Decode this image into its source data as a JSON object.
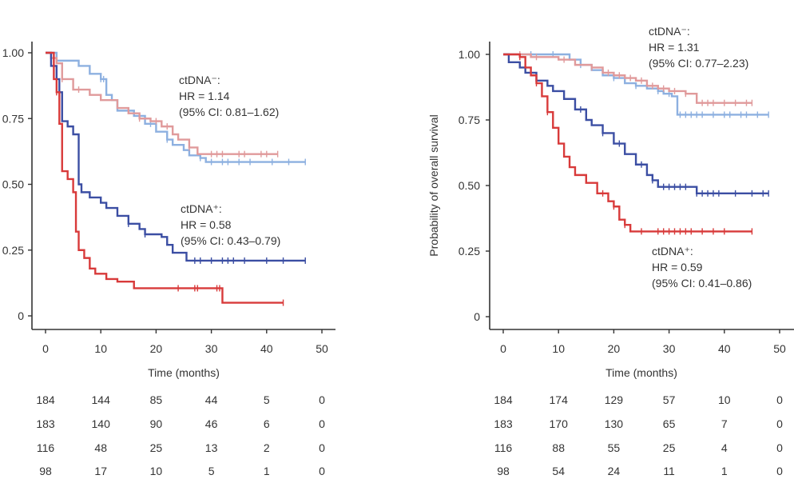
{
  "chart_data": [
    {
      "type": "line",
      "subtype": "kaplan-meier",
      "title": "",
      "xlabel": "Time (months)",
      "ylabel": "",
      "xlim": [
        0,
        50
      ],
      "ylim": [
        0,
        1
      ],
      "xticks": [
        "0",
        "10",
        "20",
        "30",
        "40",
        "50"
      ],
      "yticks": [
        "0",
        "0.25",
        "0.50",
        "0.75",
        "1.00"
      ],
      "grid": false,
      "annotations": [
        {
          "lines": [
            "ctDNA⁻:",
            "HR = 1.14",
            "(95% CI: 0.81–1.62)"
          ],
          "near": "upper-right"
        },
        {
          "lines": [
            "ctDNA⁺:",
            "HR = 0.58",
            "(95% CI: 0.43–0.79)"
          ],
          "near": "middle-right"
        }
      ],
      "series": [
        {
          "name": "ctDNA- light blue",
          "color": "#8db0e0",
          "t": [
            0,
            2,
            6,
            8,
            10,
            11,
            12,
            13,
            16,
            18,
            20,
            22,
            23,
            25,
            26,
            28,
            29,
            47
          ],
          "s": [
            1.0,
            0.97,
            0.95,
            0.92,
            0.9,
            0.84,
            0.82,
            0.78,
            0.76,
            0.73,
            0.7,
            0.67,
            0.65,
            0.63,
            0.61,
            0.6,
            0.585,
            0.585
          ],
          "censor_t": [
            10,
            10.5,
            19,
            22,
            28,
            30,
            32,
            33,
            35,
            37,
            41,
            44,
            47
          ]
        },
        {
          "name": "ctDNA- pink",
          "color": "#e09a9b",
          "t": [
            0,
            1,
            2,
            3,
            5,
            8,
            10,
            13,
            15,
            17,
            19,
            21,
            23,
            24,
            26,
            27.5,
            42
          ],
          "s": [
            1.0,
            0.98,
            0.96,
            0.9,
            0.86,
            0.84,
            0.82,
            0.79,
            0.77,
            0.75,
            0.74,
            0.72,
            0.69,
            0.67,
            0.64,
            0.615,
            0.615
          ],
          "censor_t": [
            3,
            6,
            17,
            20,
            22,
            26,
            30,
            31,
            32,
            35,
            36,
            39,
            40,
            42
          ]
        },
        {
          "name": "ctDNA+ dark blue",
          "color": "#3b4ea3",
          "t": [
            0,
            1,
            2,
            2.5,
            3,
            4,
            5,
            6,
            6.5,
            8,
            10,
            11,
            13,
            15,
            17,
            18,
            21,
            22,
            23,
            25.5,
            47
          ],
          "s": [
            1.0,
            0.95,
            0.9,
            0.85,
            0.74,
            0.72,
            0.69,
            0.5,
            0.47,
            0.45,
            0.43,
            0.41,
            0.38,
            0.35,
            0.33,
            0.31,
            0.3,
            0.27,
            0.24,
            0.21,
            0.21
          ],
          "censor_t": [
            2,
            15,
            18,
            27,
            28,
            30,
            32,
            33,
            34,
            36,
            40,
            43,
            47
          ]
        },
        {
          "name": "ctDNA+ red",
          "color": "#d83a3a",
          "t": [
            0,
            1.5,
            2,
            2.5,
            3,
            4,
            5,
            5.5,
            6,
            7,
            8,
            9,
            11,
            13,
            16,
            32,
            43
          ],
          "s": [
            1.0,
            0.9,
            0.85,
            0.73,
            0.55,
            0.52,
            0.47,
            0.32,
            0.25,
            0.22,
            0.18,
            0.16,
            0.14,
            0.13,
            0.105,
            0.05,
            0.05
          ],
          "censor_t": [
            2,
            24,
            27,
            27.5,
            31,
            31.5,
            43
          ]
        }
      ],
      "risk_table": [
        [
          184,
          144,
          85,
          44,
          5,
          0
        ],
        [
          183,
          140,
          90,
          46,
          6,
          0
        ],
        [
          116,
          48,
          25,
          13,
          2,
          0
        ],
        [
          98,
          17,
          10,
          5,
          1,
          0
        ]
      ]
    },
    {
      "type": "line",
      "subtype": "kaplan-meier",
      "title": "",
      "xlabel": "Time (months)",
      "ylabel": "Probability of overall survival",
      "xlim": [
        0,
        50
      ],
      "ylim": [
        0,
        1
      ],
      "xticks": [
        "0",
        "10",
        "20",
        "30",
        "40",
        "50"
      ],
      "yticks": [
        "0",
        "0.25",
        "0.50",
        "0.75",
        "1.00"
      ],
      "grid": false,
      "annotations": [
        {
          "lines": [
            "ctDNA⁻:",
            "HR = 1.31",
            "(95% CI: 0.77–2.23)"
          ],
          "near": "top-right"
        },
        {
          "lines": [
            "ctDNA⁺:",
            "HR = 0.59",
            "(95% CI: 0.41–0.86)"
          ],
          "near": "lower-right"
        }
      ],
      "series": [
        {
          "name": "ctDNA- light blue",
          "color": "#8db0e0",
          "t": [
            0,
            10,
            12,
            14,
            16,
            18,
            20,
            22,
            24,
            26,
            28,
            29,
            30.5,
            31.5,
            48
          ],
          "s": [
            1.0,
            1.0,
            0.98,
            0.96,
            0.94,
            0.92,
            0.91,
            0.89,
            0.88,
            0.87,
            0.86,
            0.85,
            0.84,
            0.77,
            0.77
          ],
          "censor_t": [
            5,
            9,
            14,
            20,
            24,
            28,
            30,
            32,
            33,
            34,
            35,
            36,
            38,
            40,
            41,
            43,
            44,
            46,
            48
          ]
        },
        {
          "name": "ctDNA- pink",
          "color": "#e09a9b",
          "t": [
            0,
            5,
            10,
            13,
            16,
            18,
            20,
            22,
            24,
            26,
            28,
            30,
            33,
            35,
            45
          ],
          "s": [
            1.0,
            0.99,
            0.98,
            0.96,
            0.95,
            0.93,
            0.92,
            0.91,
            0.9,
            0.88,
            0.87,
            0.86,
            0.85,
            0.815,
            0.815
          ],
          "censor_t": [
            3,
            6,
            11,
            16,
            19,
            21,
            23,
            25,
            27,
            29,
            31,
            33,
            36,
            37,
            38,
            40,
            42,
            44,
            45
          ]
        },
        {
          "name": "ctDNA+ dark blue",
          "color": "#3b4ea3",
          "t": [
            0,
            1,
            3,
            4,
            6,
            8,
            9,
            11,
            13,
            15,
            16,
            18,
            20,
            22,
            24,
            26,
            27,
            28,
            34,
            35,
            48
          ],
          "s": [
            1.0,
            0.97,
            0.95,
            0.93,
            0.9,
            0.88,
            0.86,
            0.83,
            0.79,
            0.75,
            0.73,
            0.7,
            0.66,
            0.62,
            0.58,
            0.54,
            0.52,
            0.495,
            0.495,
            0.47,
            0.47
          ],
          "censor_t": [
            6,
            14,
            18,
            21,
            25,
            27,
            29,
            30,
            31,
            32,
            33,
            35,
            36,
            37,
            38,
            39,
            42,
            45,
            47,
            48
          ]
        },
        {
          "name": "ctDNA+ red",
          "color": "#d83a3a",
          "t": [
            0,
            3,
            4,
            5,
            6,
            7,
            8,
            9,
            10,
            11,
            12,
            13,
            15,
            17,
            19,
            20,
            21,
            22,
            23,
            45
          ],
          "s": [
            1.0,
            0.99,
            0.95,
            0.92,
            0.89,
            0.84,
            0.78,
            0.72,
            0.66,
            0.61,
            0.57,
            0.54,
            0.51,
            0.47,
            0.44,
            0.42,
            0.37,
            0.35,
            0.325,
            0.325
          ],
          "censor_t": [
            3,
            6,
            8,
            18,
            20,
            22,
            25,
            28,
            29,
            30,
            31,
            32,
            33,
            34,
            36,
            38,
            40,
            45
          ]
        }
      ],
      "risk_table": [
        [
          184,
          174,
          129,
          57,
          10,
          0
        ],
        [
          183,
          170,
          130,
          65,
          7,
          0
        ],
        [
          116,
          88,
          55,
          25,
          4,
          0
        ],
        [
          98,
          54,
          24,
          11,
          1,
          0
        ]
      ]
    }
  ]
}
